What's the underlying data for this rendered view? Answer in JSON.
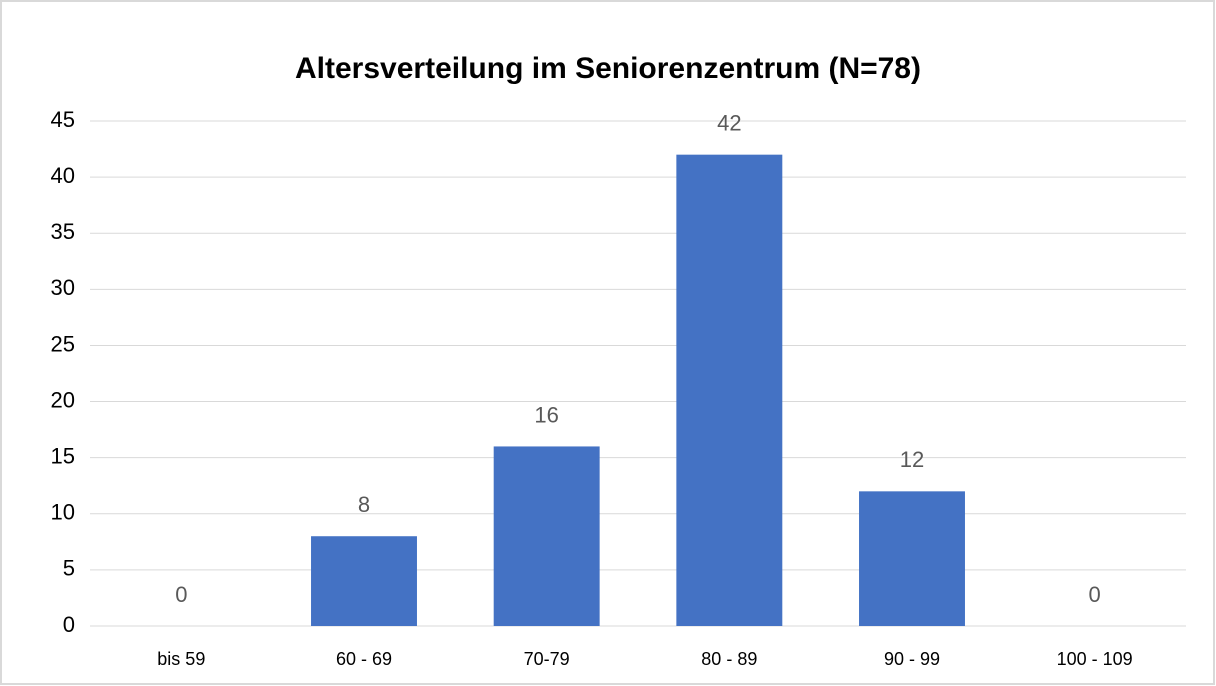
{
  "chart_data": {
    "type": "bar",
    "title": "Altersverteilung im Seniorenzentrum (N=78)",
    "categories": [
      "bis 59",
      "60 - 69",
      "70-79",
      "80 - 89",
      "90 - 99",
      "100 - 109"
    ],
    "values": [
      0,
      8,
      16,
      42,
      12,
      0
    ],
    "color": "#4472c4",
    "ylim": [
      0,
      45
    ],
    "yticks": [
      0,
      5,
      10,
      15,
      20,
      25,
      30,
      35,
      40,
      45
    ],
    "grid": true,
    "data_labels": true
  }
}
